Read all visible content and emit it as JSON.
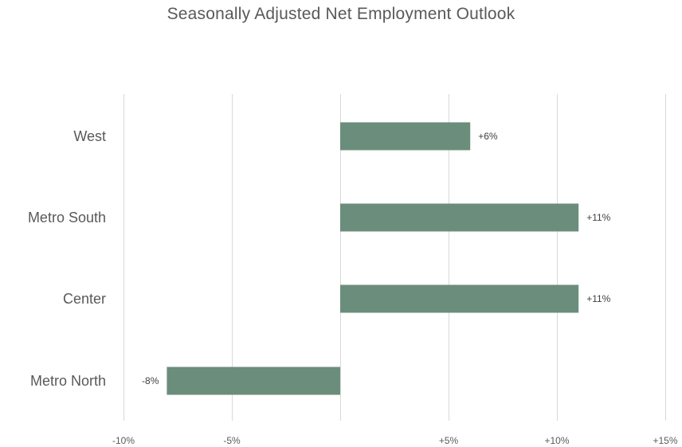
{
  "chart_data": {
    "type": "bar",
    "orientation": "horizontal",
    "title": "Seasonally Adjusted Net Employment Outlook",
    "categories": [
      "West",
      "Metro South",
      "Center",
      "Metro North"
    ],
    "values": [
      6,
      11,
      11,
      -8
    ],
    "data_labels": [
      "+6%",
      "+11%",
      "+11%",
      "-8%"
    ],
    "xlim": [
      -10,
      15
    ],
    "x_ticks": [
      -10,
      -5,
      0,
      5,
      10,
      15
    ],
    "x_tick_labels": [
      "-10%",
      "-5%",
      "",
      "+5%",
      "+10%",
      "+15%"
    ],
    "grid": true,
    "legend": "none",
    "bar_color": "#6b8d7c",
    "grid_color": "#d9d9d9"
  }
}
